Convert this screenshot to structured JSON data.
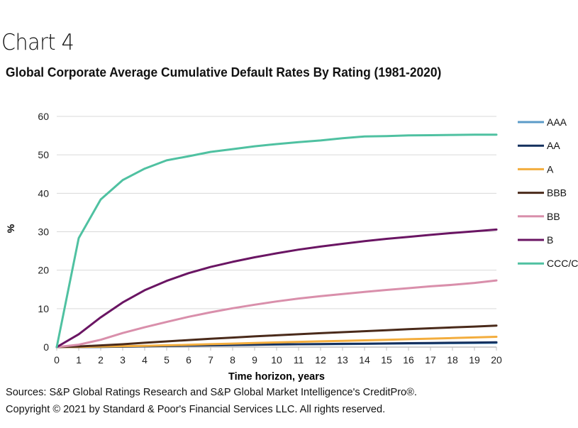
{
  "header": {
    "chart_label": "Chart 4",
    "title": "Global Corporate Average Cumulative Default Rates By Rating (1981-2020)"
  },
  "footer": {
    "sources": "Sources: S&P Global Ratings Research and S&P Global Market Intelligence's CreditPro®.",
    "copyright": "Copyright © 2021 by Standard & Poor's Financial Services LLC. All rights reserved."
  },
  "chart_data": {
    "type": "line",
    "title": "Global Corporate Average Cumulative Default Rates By Rating (1981-2020)",
    "xlabel": "Time horizon, years",
    "ylabel": "%",
    "x": [
      0,
      1,
      2,
      3,
      4,
      5,
      6,
      7,
      8,
      9,
      10,
      11,
      12,
      13,
      14,
      15,
      16,
      17,
      18,
      19,
      20
    ],
    "xlim": [
      0,
      20
    ],
    "ylim": [
      0,
      60
    ],
    "yticks": [
      0,
      10,
      20,
      30,
      40,
      50,
      60
    ],
    "xticks": [
      "0",
      "1",
      "2",
      "3",
      "4",
      "5",
      "6",
      "7",
      "8",
      "9",
      "10",
      "11",
      "12",
      "13",
      "14",
      "15",
      "16",
      "17",
      "18",
      "19",
      "20"
    ],
    "grid": "horizontal",
    "legend_position": "right",
    "series": [
      {
        "name": "AAA",
        "color": "#5b9bc8",
        "values": [
          0,
          0.0,
          0.03,
          0.13,
          0.24,
          0.35,
          0.45,
          0.51,
          0.59,
          0.64,
          0.7,
          0.73,
          0.76,
          0.79,
          0.85,
          0.9,
          0.94,
          0.98,
          1.02,
          1.05,
          1.1
        ]
      },
      {
        "name": "AA",
        "color": "#14305e",
        "values": [
          0,
          0.02,
          0.06,
          0.11,
          0.2,
          0.3,
          0.39,
          0.47,
          0.54,
          0.61,
          0.68,
          0.74,
          0.79,
          0.84,
          0.89,
          0.95,
          1.01,
          1.07,
          1.13,
          1.19,
          1.25
        ]
      },
      {
        "name": "A",
        "color": "#f3ad3d",
        "values": [
          0,
          0.05,
          0.13,
          0.22,
          0.33,
          0.46,
          0.6,
          0.76,
          0.91,
          1.07,
          1.22,
          1.36,
          1.49,
          1.62,
          1.76,
          1.89,
          2.04,
          2.19,
          2.35,
          2.51,
          2.67
        ]
      },
      {
        "name": "BBB",
        "color": "#4a2a1a",
        "values": [
          0,
          0.16,
          0.44,
          0.74,
          1.12,
          1.48,
          1.83,
          2.16,
          2.48,
          2.78,
          3.07,
          3.35,
          3.62,
          3.87,
          4.13,
          4.4,
          4.66,
          4.89,
          5.12,
          5.34,
          5.59
        ]
      },
      {
        "name": "BB",
        "color": "#d98fab",
        "values": [
          0,
          0.62,
          1.91,
          3.66,
          5.15,
          6.53,
          7.88,
          9.04,
          10.1,
          11.02,
          11.87,
          12.62,
          13.24,
          13.8,
          14.34,
          14.86,
          15.32,
          15.8,
          16.2,
          16.69,
          17.34
        ]
      },
      {
        "name": "B",
        "color": "#6a1563",
        "values": [
          0,
          3.35,
          7.73,
          11.61,
          14.79,
          17.23,
          19.24,
          20.84,
          22.18,
          23.35,
          24.39,
          25.35,
          26.14,
          26.87,
          27.54,
          28.15,
          28.66,
          29.19,
          29.68,
          30.12,
          30.57
        ]
      },
      {
        "name": "CCC/C",
        "color": "#4fc1a1",
        "values": [
          0,
          28.34,
          38.4,
          43.44,
          46.41,
          48.58,
          49.64,
          50.77,
          51.49,
          52.22,
          52.8,
          53.32,
          53.74,
          54.31,
          54.79,
          54.89,
          55.06,
          55.1,
          55.19,
          55.25,
          55.25
        ]
      }
    ]
  }
}
